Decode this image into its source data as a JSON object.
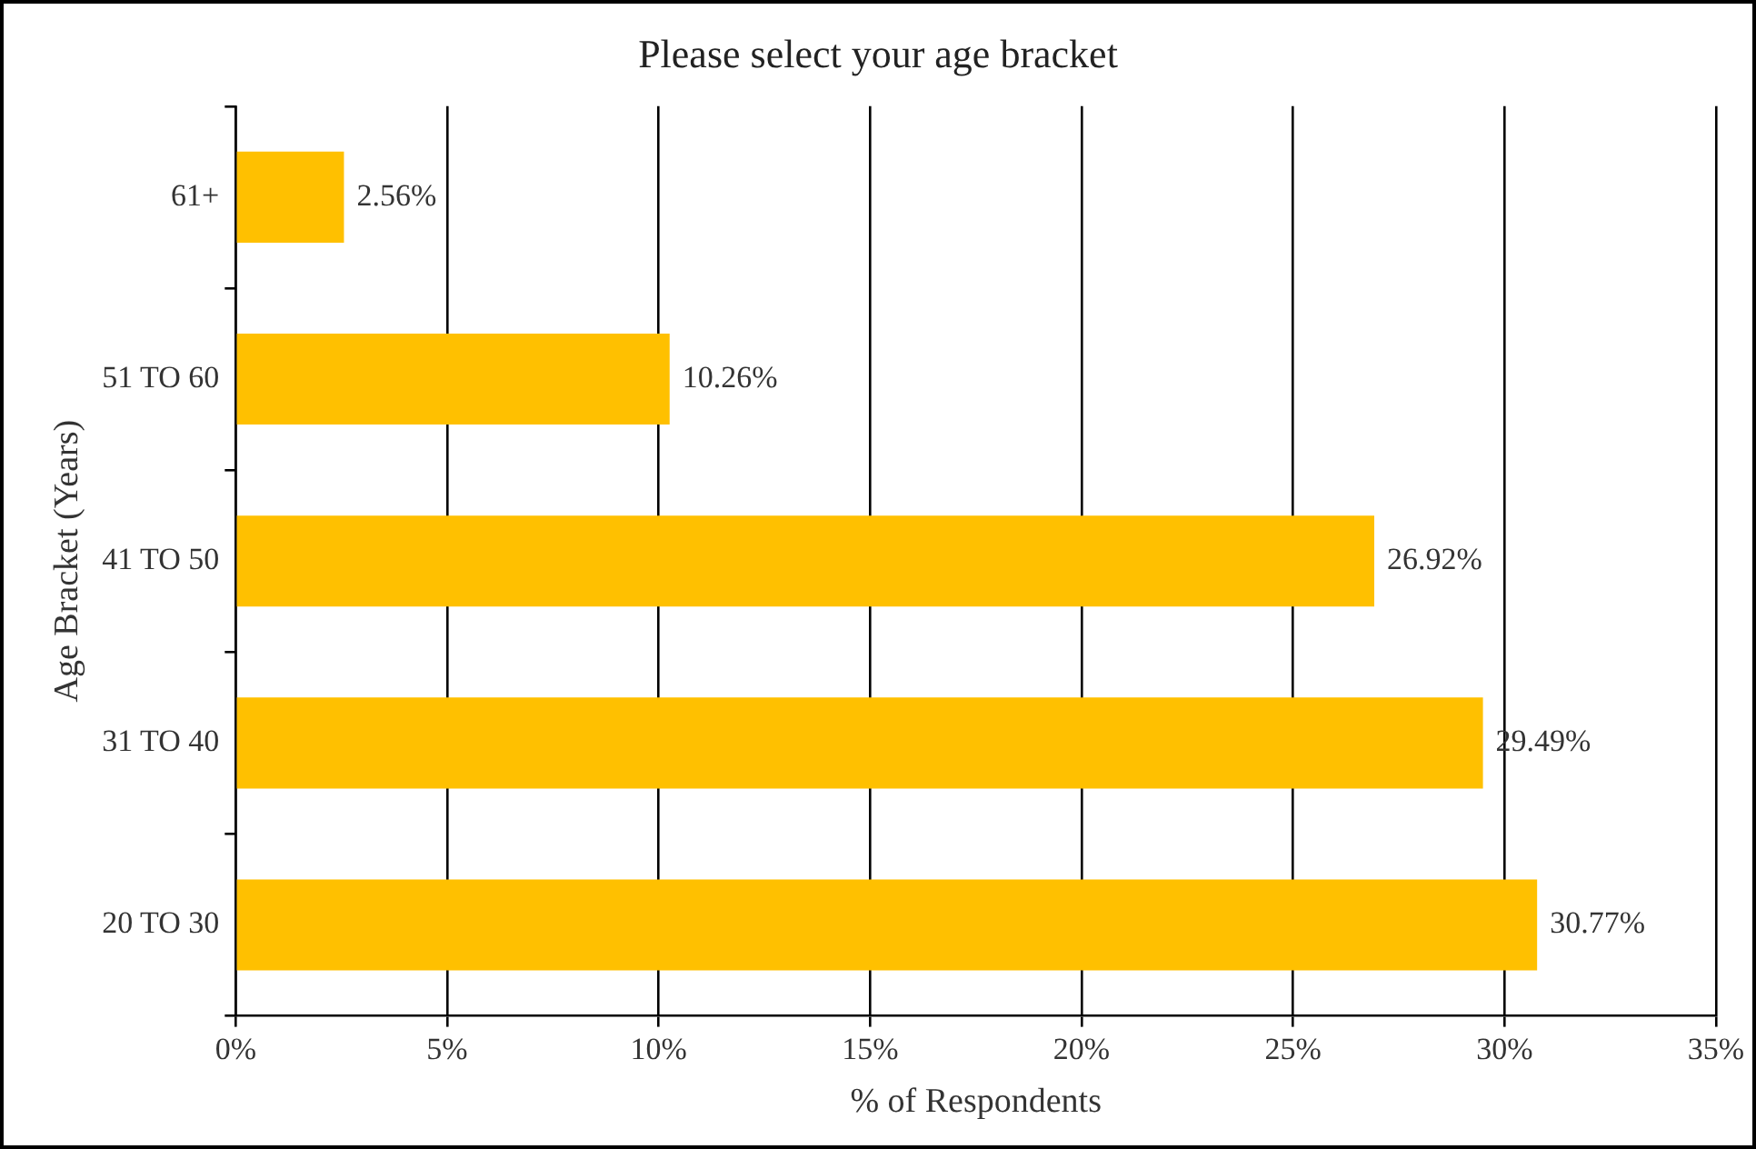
{
  "chart_data": {
    "type": "bar",
    "orientation": "horizontal",
    "title": "Please select your age bracket",
    "xlabel": "% of Respondents",
    "ylabel": "Age Bracket (Years)",
    "categories": [
      "61+",
      "51 TO 60",
      "41 TO 50",
      "31 TO 40",
      "20 TO 30"
    ],
    "values": [
      2.56,
      10.26,
      26.92,
      29.49,
      30.77
    ],
    "value_labels": [
      "2.56%",
      "10.26%",
      "26.92%",
      "29.49%",
      "30.77%"
    ],
    "color": "#ffc000",
    "xlim": [
      0,
      35
    ],
    "xticks": [
      {
        "value": 0,
        "label": "0%"
      },
      {
        "value": 5,
        "label": "5%"
      },
      {
        "value": 10,
        "label": "10%"
      },
      {
        "value": 15,
        "label": "15%"
      },
      {
        "value": 20,
        "label": "20%"
      },
      {
        "value": 25,
        "label": "25%"
      },
      {
        "value": 30,
        "label": "30%"
      },
      {
        "value": 35,
        "label": "35%"
      }
    ],
    "grid": "x",
    "legend": false
  }
}
